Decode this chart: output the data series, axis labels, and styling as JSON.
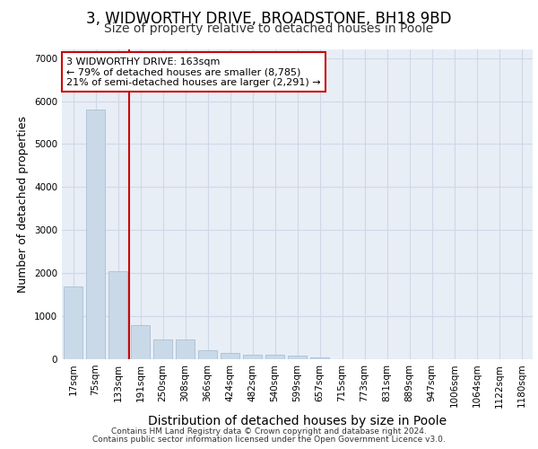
{
  "title1": "3, WIDWORTHY DRIVE, BROADSTONE, BH18 9BD",
  "title2": "Size of property relative to detached houses in Poole",
  "xlabel": "Distribution of detached houses by size in Poole",
  "ylabel": "Number of detached properties",
  "bar_labels": [
    "17sqm",
    "75sqm",
    "133sqm",
    "191sqm",
    "250sqm",
    "308sqm",
    "366sqm",
    "424sqm",
    "482sqm",
    "540sqm",
    "599sqm",
    "657sqm",
    "715sqm",
    "773sqm",
    "831sqm",
    "889sqm",
    "947sqm",
    "1006sqm",
    "1064sqm",
    "1122sqm",
    "1180sqm"
  ],
  "bar_values": [
    1700,
    5800,
    2050,
    800,
    450,
    450,
    200,
    150,
    100,
    100,
    75,
    50,
    10,
    5,
    3,
    2,
    1,
    1,
    1,
    1,
    1
  ],
  "bar_color": "#c9d9e8",
  "bar_edgecolor": "#a0b8cc",
  "grid_color": "#d0d8e8",
  "background_color": "#e8eef6",
  "vline_color": "#cc0000",
  "vline_pos": 2.5,
  "annotation_text": "3 WIDWORTHY DRIVE: 163sqm\n← 79% of detached houses are smaller (8,785)\n21% of semi-detached houses are larger (2,291) →",
  "annotation_box_color": "#ffffff",
  "annotation_box_edgecolor": "#cc0000",
  "ylim": [
    0,
    7200
  ],
  "yticks": [
    0,
    1000,
    2000,
    3000,
    4000,
    5000,
    6000,
    7000
  ],
  "footer1": "Contains HM Land Registry data © Crown copyright and database right 2024.",
  "footer2": "Contains public sector information licensed under the Open Government Licence v3.0.",
  "title1_fontsize": 12,
  "title2_fontsize": 10,
  "tick_fontsize": 7.5,
  "ylabel_fontsize": 9,
  "xlabel_fontsize": 10
}
